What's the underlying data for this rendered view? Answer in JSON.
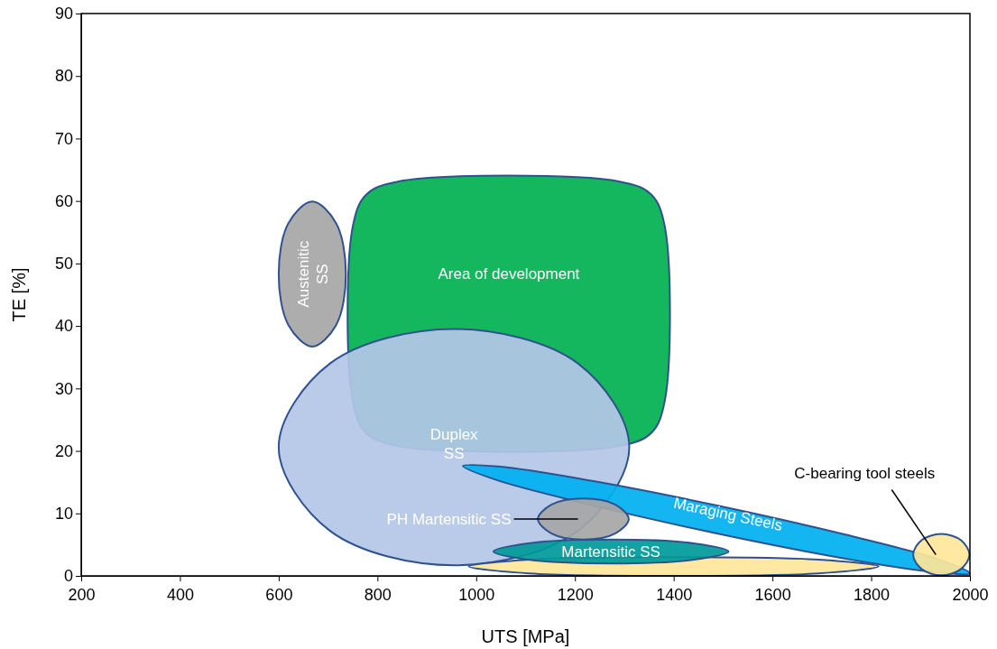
{
  "chart_data": {
    "type": "area",
    "xlabel": "UTS [MPa]",
    "ylabel": "TE [%]",
    "xlim": [
      200,
      2000
    ],
    "xticks": [
      200,
      400,
      600,
      800,
      1000,
      1200,
      1400,
      1600,
      1800,
      2000
    ],
    "ylim": [
      0,
      90
    ],
    "yticks": [
      0,
      10,
      20,
      30,
      40,
      50,
      60,
      70,
      80,
      90
    ],
    "series": [
      {
        "name": "Austenitic\nSS",
        "color": "#a6a6a6",
        "x": [
          736,
          716,
          668,
          620,
          600,
          620,
          668,
          716
        ],
        "values": [
          48.3,
          56.5,
          59.9,
          56.5,
          48.3,
          40.1,
          36.7,
          40.1
        ]
      },
      {
        "name": "Area of development",
        "color": "#00b050",
        "x": [
          1382,
          1382,
          1355,
          1291,
          841,
          777,
          750,
          750,
          777,
          841,
          1291,
          1355
        ],
        "values": [
          55.9,
          28,
          22.9,
          20.8,
          20.8,
          22.9,
          28,
          55.9,
          61,
          63.1,
          63.1,
          61
        ]
      },
      {
        "name": "Duplex\nSS",
        "color": "#b4c7e7",
        "x": [
          1310,
          1206,
          955,
          704,
          600,
          704,
          955,
          1206
        ],
        "values": [
          20.6,
          34,
          39.5,
          34,
          20.6,
          7.2,
          1.7,
          7.2
        ]
      },
      {
        "color": "#ffe699",
        "x": [
          1815,
          1693,
          1400,
          1107,
          985,
          1107,
          1400,
          1693
        ],
        "values": [
          1.5,
          2.6,
          3,
          2.6,
          1.5,
          0.4,
          0,
          0.4
        ]
      },
      {
        "name": "Maraging Steels",
        "color": "#00b0f0",
        "x": [
          2000,
          1928,
          1738,
          1481,
          1225,
          1039,
          973,
          1045,
          1235,
          1492,
          1748,
          1934
        ],
        "values": [
          0.4,
          0.6,
          2.9,
          6.9,
          11.5,
          15.4,
          17.6,
          17.5,
          15.2,
          11.2,
          6.6,
          2.7
        ]
      },
      {
        "name": "Martensitic SS",
        "color": "#009999",
        "x": [
          1511,
          1441,
          1273,
          1105,
          1035,
          1105,
          1273,
          1441
        ],
        "values": [
          3.9,
          5.2,
          5.8,
          5.2,
          3.9,
          2.6,
          2,
          2.6
        ]
      },
      {
        "name": "PH Martensitic SS",
        "color": "#a6a6a6",
        "x": [
          1309,
          1282,
          1217,
          1152,
          1125,
          1152,
          1217,
          1282
        ],
        "values": [
          9.1,
          11.4,
          12.4,
          11.4,
          9.1,
          6.8,
          5.8,
          6.8
        ]
      },
      {
        "name": "C-bearing tool steels",
        "color": "#ffe699",
        "x": [
          1999,
          1982,
          1942,
          1902,
          1885,
          1902,
          1942,
          1982
        ],
        "values": [
          3.4,
          5.7,
          6.7,
          5.7,
          3.4,
          1.1,
          0.1,
          1.1
        ]
      }
    ]
  }
}
